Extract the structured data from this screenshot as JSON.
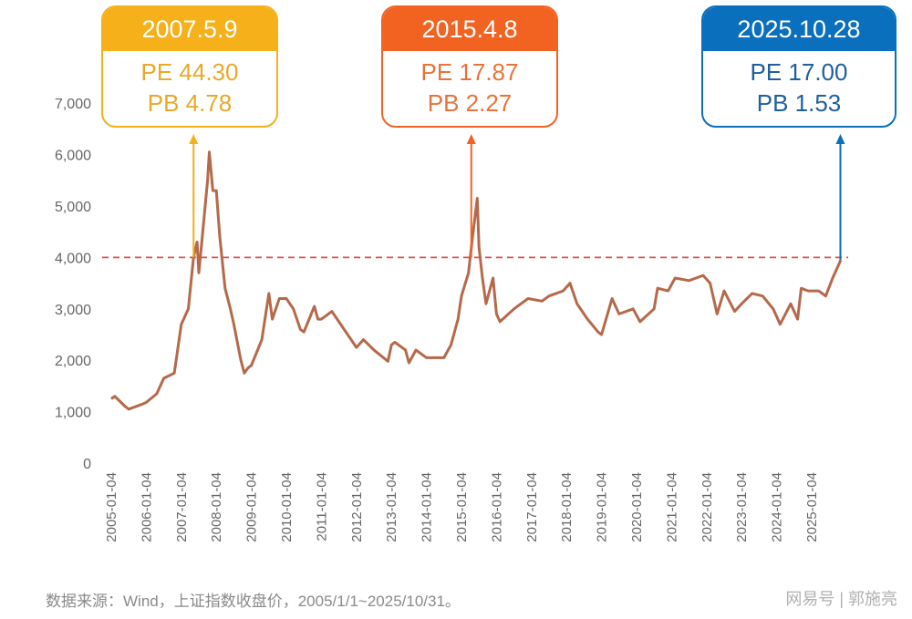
{
  "chart_data": {
    "type": "line",
    "title": "",
    "xlabel": "",
    "ylabel": "",
    "ylim": [
      0,
      7000
    ],
    "yticks": [
      "0",
      "1,000",
      "2,000",
      "3,000",
      "4,000",
      "5,000",
      "6,000",
      "7,000"
    ],
    "ytick_values": [
      0,
      1000,
      2000,
      3000,
      4000,
      5000,
      6000,
      7000
    ],
    "xticks": [
      "2005-01-04",
      "2006-01-04",
      "2007-01-04",
      "2008-01-04",
      "2009-01-04",
      "2010-01-04",
      "2011-01-04",
      "2012-01-04",
      "2013-01-04",
      "2014-01-04",
      "2015-01-04",
      "2016-01-04",
      "2017-01-04",
      "2018-01-04",
      "2019-01-04",
      "2020-01-04",
      "2021-01-04",
      "2022-01-04",
      "2023-01-04",
      "2024-01-04",
      "2025-01-04"
    ],
    "grid": false,
    "line_color": "#b5694a",
    "reference_line": {
      "value": 4000,
      "color": "#d9534f",
      "style": "dashed"
    },
    "series": [
      {
        "points": [
          [
            2005.0,
            1250
          ],
          [
            2005.1,
            1300
          ],
          [
            2005.4,
            1100
          ],
          [
            2005.5,
            1050
          ],
          [
            2005.9,
            1150
          ],
          [
            2006.0,
            1180
          ],
          [
            2006.3,
            1350
          ],
          [
            2006.5,
            1650
          ],
          [
            2006.8,
            1750
          ],
          [
            2007.0,
            2700
          ],
          [
            2007.2,
            3000
          ],
          [
            2007.35,
            4000
          ],
          [
            2007.45,
            4300
          ],
          [
            2007.5,
            3700
          ],
          [
            2007.6,
            4400
          ],
          [
            2007.75,
            5500
          ],
          [
            2007.8,
            6050
          ],
          [
            2007.9,
            5300
          ],
          [
            2008.0,
            5300
          ],
          [
            2008.1,
            4400
          ],
          [
            2008.25,
            3400
          ],
          [
            2008.4,
            3000
          ],
          [
            2008.5,
            2700
          ],
          [
            2008.7,
            2000
          ],
          [
            2008.8,
            1750
          ],
          [
            2008.9,
            1850
          ],
          [
            2009.0,
            1900
          ],
          [
            2009.3,
            2400
          ],
          [
            2009.5,
            3300
          ],
          [
            2009.6,
            2800
          ],
          [
            2009.8,
            3200
          ],
          [
            2010.0,
            3200
          ],
          [
            2010.2,
            3000
          ],
          [
            2010.4,
            2600
          ],
          [
            2010.5,
            2550
          ],
          [
            2010.8,
            3050
          ],
          [
            2010.9,
            2800
          ],
          [
            2011.0,
            2800
          ],
          [
            2011.3,
            2950
          ],
          [
            2011.5,
            2750
          ],
          [
            2011.8,
            2450
          ],
          [
            2012.0,
            2250
          ],
          [
            2012.2,
            2400
          ],
          [
            2012.5,
            2200
          ],
          [
            2012.9,
            1980
          ],
          [
            2013.0,
            2300
          ],
          [
            2013.1,
            2350
          ],
          [
            2013.4,
            2200
          ],
          [
            2013.5,
            1950
          ],
          [
            2013.7,
            2200
          ],
          [
            2014.0,
            2050
          ],
          [
            2014.5,
            2050
          ],
          [
            2014.7,
            2300
          ],
          [
            2014.9,
            2800
          ],
          [
            2015.0,
            3250
          ],
          [
            2015.2,
            3700
          ],
          [
            2015.3,
            4300
          ],
          [
            2015.45,
            5150
          ],
          [
            2015.5,
            4200
          ],
          [
            2015.6,
            3600
          ],
          [
            2015.7,
            3100
          ],
          [
            2015.9,
            3600
          ],
          [
            2016.0,
            2900
          ],
          [
            2016.1,
            2750
          ],
          [
            2016.5,
            3000
          ],
          [
            2016.9,
            3200
          ],
          [
            2017.3,
            3150
          ],
          [
            2017.5,
            3250
          ],
          [
            2017.9,
            3350
          ],
          [
            2018.1,
            3500
          ],
          [
            2018.3,
            3100
          ],
          [
            2018.6,
            2800
          ],
          [
            2018.9,
            2550
          ],
          [
            2019.0,
            2500
          ],
          [
            2019.3,
            3200
          ],
          [
            2019.5,
            2900
          ],
          [
            2019.9,
            3000
          ],
          [
            2020.1,
            2750
          ],
          [
            2020.5,
            3000
          ],
          [
            2020.6,
            3400
          ],
          [
            2020.9,
            3350
          ],
          [
            2021.1,
            3600
          ],
          [
            2021.5,
            3550
          ],
          [
            2021.9,
            3650
          ],
          [
            2022.1,
            3500
          ],
          [
            2022.3,
            2900
          ],
          [
            2022.5,
            3350
          ],
          [
            2022.8,
            2950
          ],
          [
            2023.0,
            3100
          ],
          [
            2023.3,
            3300
          ],
          [
            2023.6,
            3250
          ],
          [
            2023.9,
            3000
          ],
          [
            2024.1,
            2700
          ],
          [
            2024.4,
            3100
          ],
          [
            2024.6,
            2800
          ],
          [
            2024.7,
            3400
          ],
          [
            2024.9,
            3350
          ],
          [
            2025.2,
            3350
          ],
          [
            2025.4,
            3250
          ],
          [
            2025.6,
            3600
          ],
          [
            2025.83,
            3950
          ]
        ]
      }
    ],
    "annotations": [
      {
        "date": "2007.5.9",
        "pe": "PE 44.30",
        "pb": "PB 4.78",
        "x": 2007.35,
        "color": "#f5b01a",
        "text_color": "#e8a92a"
      },
      {
        "date": "2015.4.8",
        "pe": "PE 17.87",
        "pb": "PB 2.27",
        "x": 2015.28,
        "color": "#f26322",
        "text_color": "#e8733a"
      },
      {
        "date": "2025.10.28",
        "pe": "PE 17.00",
        "pb": "PB 1.53",
        "x": 2025.82,
        "color": "#0a6fbd",
        "text_color": "#1f5f9e"
      }
    ]
  },
  "source_note": "数据来源：Wind，上证指数收盘价，2005/1/1~2025/10/31。",
  "watermark": "网易号 | 郭施亮"
}
